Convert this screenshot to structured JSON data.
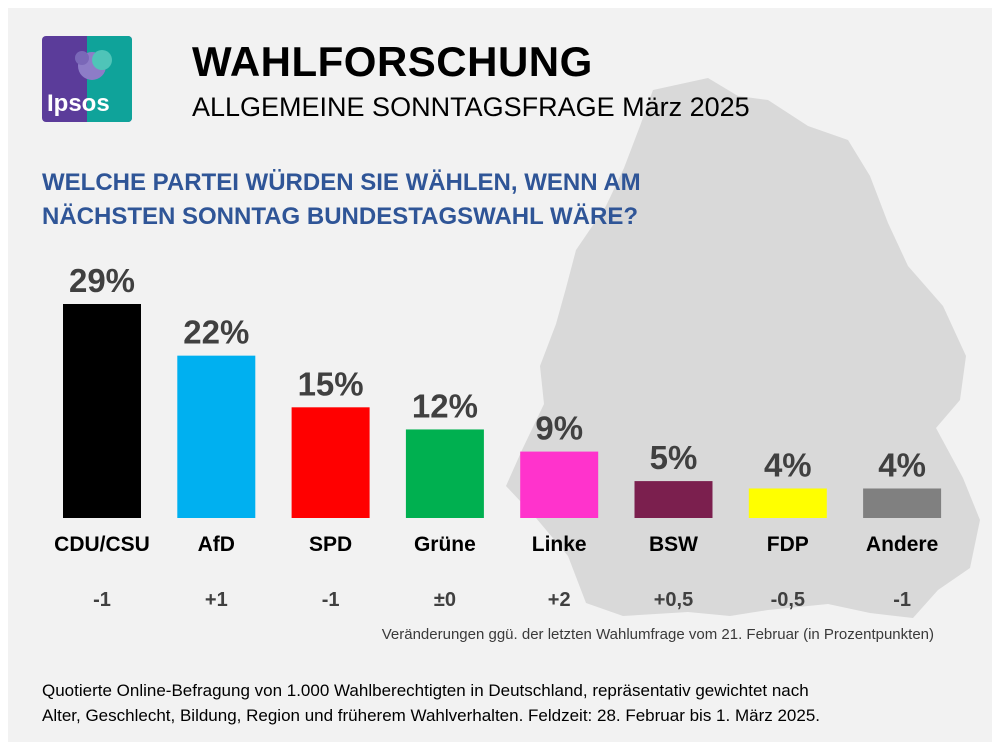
{
  "header": {
    "title": "WAHLFORSCHUNG",
    "subtitle": "ALLGEMEINE SONNTAGSFRAGE März 2025",
    "logo_text": "Ipsos"
  },
  "question": {
    "line1": "WELCHE PARTEI WÜRDEN SIE WÄHLEN, WENN AM",
    "line2": "NÄCHSTEN SONNTAG BUNDESTAGSWAHL WÄRE?"
  },
  "chart_data": {
    "type": "bar",
    "categories": [
      "CDU/CSU",
      "AfD",
      "SPD",
      "Grüne",
      "Linke",
      "BSW",
      "FDP",
      "Andere"
    ],
    "values": [
      29,
      22,
      15,
      12,
      9,
      5,
      4,
      4
    ],
    "value_labels": [
      "29%",
      "22%",
      "15%",
      "12%",
      "9%",
      "5%",
      "4%",
      "4%"
    ],
    "changes": [
      "-1",
      "+1",
      "-1",
      "±0",
      "+2",
      "+0,5",
      "-0,5",
      "-1"
    ],
    "colors": [
      "#000000",
      "#00b0f0",
      "#ff0000",
      "#00b050",
      "#ff33cc",
      "#7b1f4e",
      "#ffff00",
      "#808080"
    ],
    "title": "",
    "xlabel": "",
    "ylabel": "",
    "grid": false,
    "legend": "none"
  },
  "note": "Veränderungen ggü. der letzten Wahlumfrage vom 21. Februar (in Prozentpunkten)",
  "footer": {
    "line1": "Quotierte Online-Befragung von 1.000 Wahlberechtigten in Deutschland, repräsentativ gewichtet nach",
    "line2": "Alter, Geschlecht, Bildung, Region und früherem Wahlverhalten. Feldzeit: 28. Februar bis 1. März 2025."
  }
}
